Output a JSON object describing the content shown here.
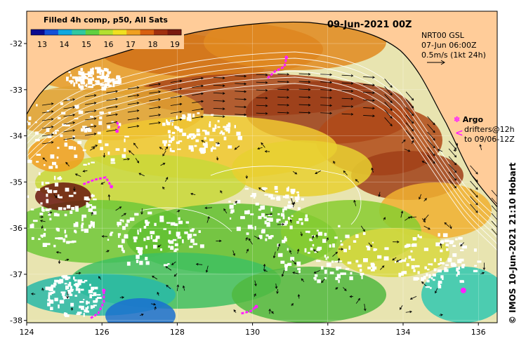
{
  "title": {
    "product": "Filled 4h comp, p50, All Sats",
    "date": "09-Jun-2021 00Z"
  },
  "colorbar": {
    "ticks": [
      "13",
      "14",
      "15",
      "16",
      "17",
      "18",
      "19"
    ],
    "colors": [
      "#0a0a90",
      "#1450d8",
      "#10a8e0",
      "#30c8a0",
      "#60d040",
      "#b4e030",
      "#f0e020",
      "#f0a020",
      "#d86010",
      "#a03010",
      "#7a1a10"
    ]
  },
  "current_info": {
    "source": "NRT00 GSL",
    "date": "07-Jun 06:00Z",
    "scale": "0.5m/s (1kt 24h)"
  },
  "legend": {
    "argo_label": "Argo",
    "drifters_line1": "drifters@12h",
    "drifters_line2": "to 09/06-12Z",
    "argo_marker": "✽",
    "drifter_marker": "<",
    "marker_color": "#ff20ff"
  },
  "credit": "© IMOS 10-Jun-2021 21:10 Hobart",
  "map": {
    "land_color": "#ffcc99",
    "lon_range": [
      124,
      136.5
    ],
    "lat_range": [
      -38.05,
      -31.3
    ]
  },
  "axes": {
    "x_ticks": [
      "124",
      "126",
      "128",
      "130",
      "132",
      "134",
      "136"
    ],
    "y_ticks": [
      "-32",
      "-33",
      "-34",
      "-35",
      "-36",
      "-37",
      "-38"
    ]
  },
  "drifter_tracks": [
    {
      "name": "track-1",
      "points": [
        [
          126.4,
          -33.7
        ],
        [
          126.45,
          -33.8
        ],
        [
          126.4,
          -33.9
        ]
      ]
    },
    {
      "name": "track-2",
      "points": [
        [
          125.5,
          -35.05
        ],
        [
          125.8,
          -34.95
        ],
        [
          126.1,
          -34.9
        ],
        [
          126.25,
          -35.1
        ]
      ]
    },
    {
      "name": "track-3",
      "points": [
        [
          130.4,
          -32.75
        ],
        [
          130.6,
          -32.6
        ],
        [
          130.85,
          -32.5
        ],
        [
          130.9,
          -32.3
        ]
      ]
    },
    {
      "name": "track-4",
      "points": [
        [
          125.7,
          -37.95
        ],
        [
          125.9,
          -37.85
        ],
        [
          126.05,
          -37.6
        ],
        [
          126.05,
          -37.35
        ]
      ]
    },
    {
      "name": "track-5",
      "points": [
        [
          129.7,
          -37.85
        ],
        [
          129.95,
          -37.8
        ],
        [
          130.1,
          -37.7
        ]
      ]
    }
  ],
  "argo_floats": [
    {
      "name": "argo-float",
      "lon": 135.6,
      "lat": -37.35
    }
  ]
}
